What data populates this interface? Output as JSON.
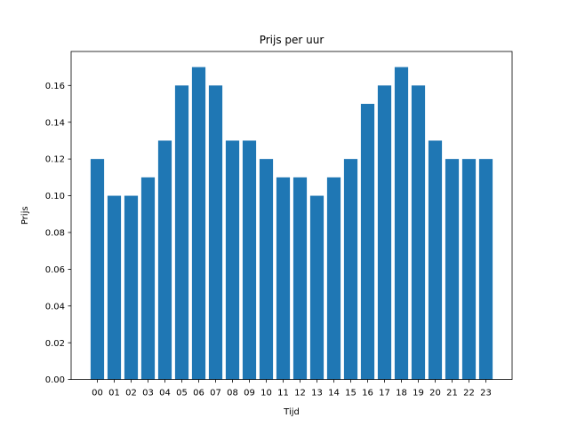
{
  "chart_data": {
    "type": "bar",
    "title": "Prijs per uur",
    "xlabel": "Tijd",
    "ylabel": "Prijs",
    "categories": [
      "00",
      "01",
      "02",
      "03",
      "04",
      "05",
      "06",
      "07",
      "08",
      "09",
      "10",
      "11",
      "12",
      "13",
      "14",
      "15",
      "16",
      "17",
      "18",
      "19",
      "20",
      "21",
      "22",
      "23"
    ],
    "values": [
      0.12,
      0.1,
      0.1,
      0.11,
      0.13,
      0.16,
      0.17,
      0.16,
      0.13,
      0.13,
      0.12,
      0.11,
      0.11,
      0.1,
      0.11,
      0.12,
      0.15,
      0.16,
      0.17,
      0.16,
      0.13,
      0.12,
      0.12,
      0.12
    ],
    "ylim": [
      0,
      0.1785
    ],
    "yticks": [
      "0.00",
      "0.02",
      "0.04",
      "0.06",
      "0.08",
      "0.10",
      "0.12",
      "0.14",
      "0.16"
    ],
    "grid": false,
    "bar_color": "#1f77b4"
  }
}
